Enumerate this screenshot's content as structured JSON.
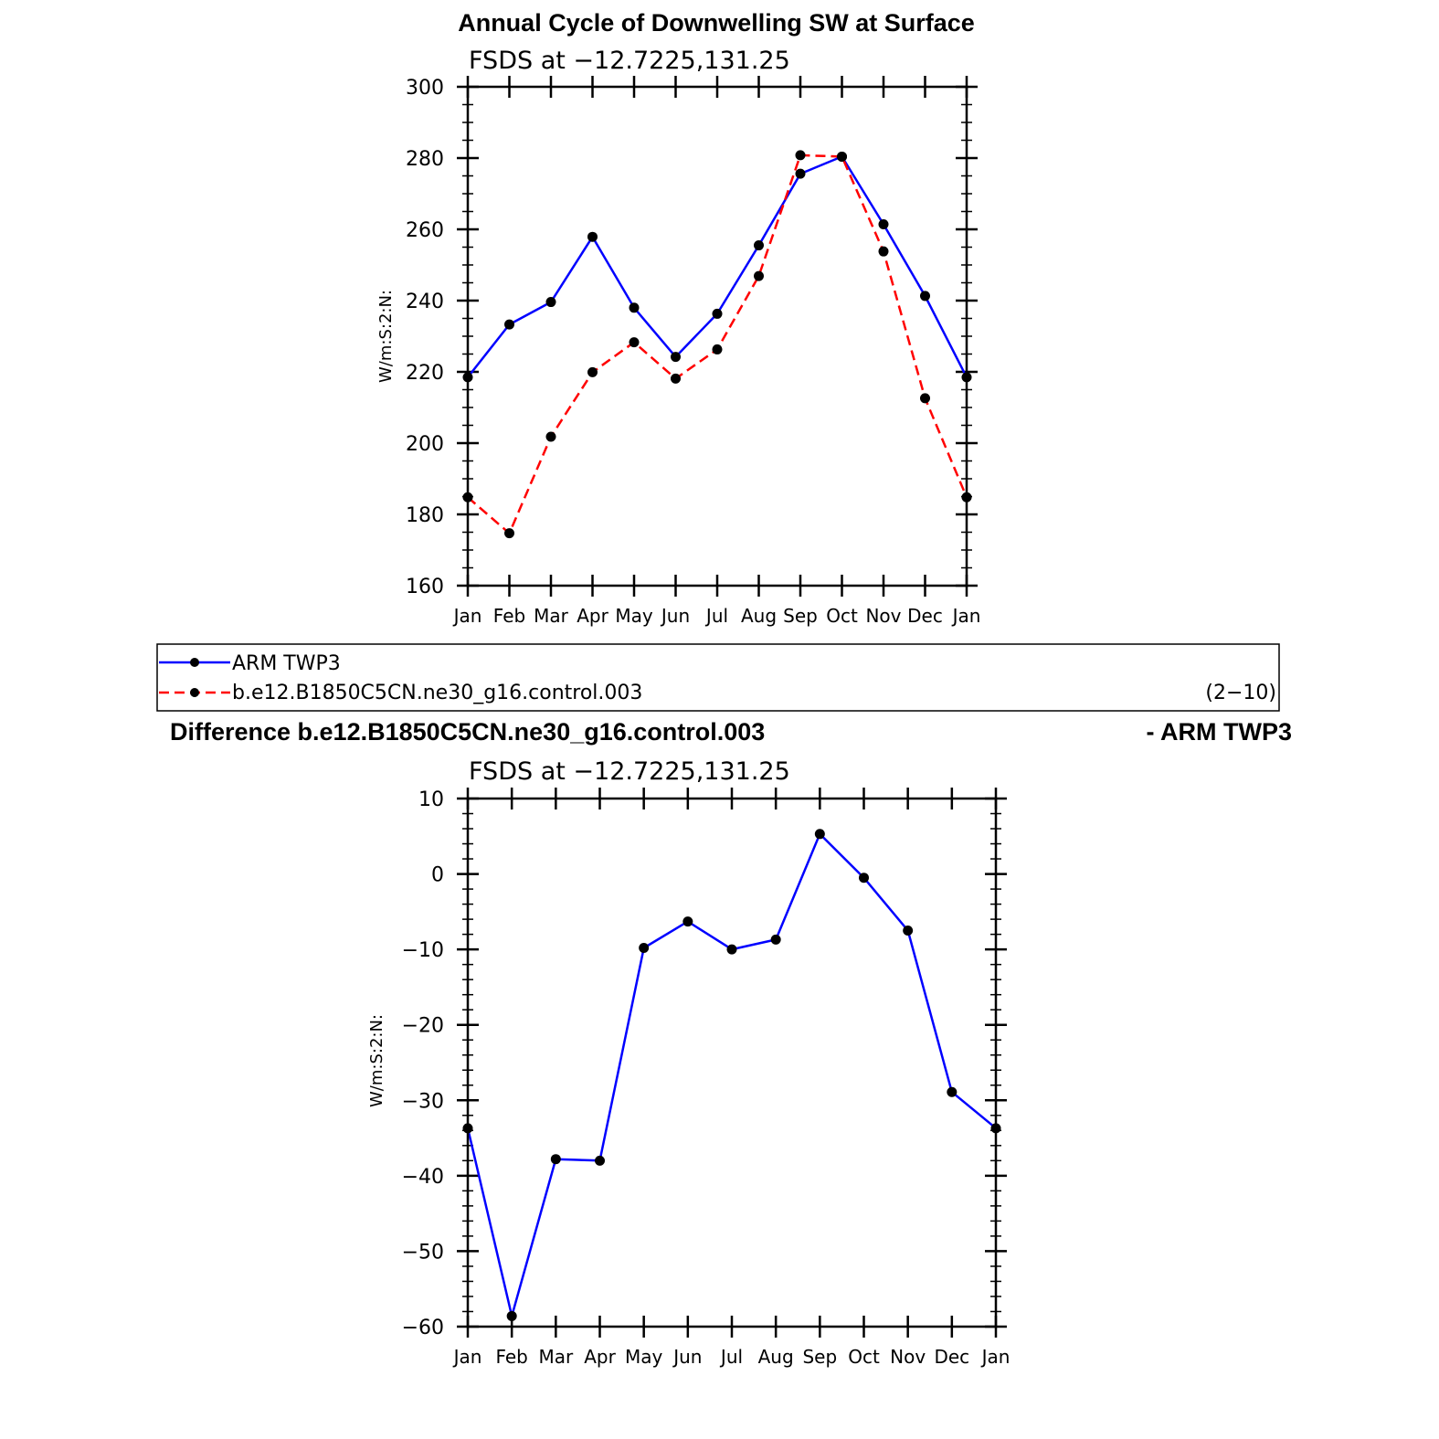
{
  "chart_data": [
    {
      "type": "line",
      "title": "Annual Cycle of Downwelling SW at Surface",
      "subtitle": "FSDS at −12.7225,131.25",
      "ylabel": "W/m:S:2:N:",
      "xlabel": "",
      "ylim": [
        160,
        300
      ],
      "yticks": [
        "160",
        "180",
        "200",
        "220",
        "240",
        "260",
        "280",
        "300"
      ],
      "categories": [
        "Jan",
        "Feb",
        "Mar",
        "Apr",
        "May",
        "Jun",
        "Jul",
        "Aug",
        "Sep",
        "Oct",
        "Nov",
        "Dec",
        "Jan"
      ],
      "series": [
        {
          "name": "ARM TWP3",
          "color": "#0000ff",
          "dash": "solid",
          "values": [
            218.5,
            233.3,
            239.6,
            257.9,
            238.0,
            224.2,
            236.3,
            255.5,
            275.6,
            280.4,
            261.4,
            241.3,
            218.5
          ]
        },
        {
          "name": "b.e12.B1850C5CN.ne30_g16.control.003",
          "color": "#ff0000",
          "dash": "dashed",
          "values": [
            184.8,
            174.7,
            201.8,
            219.9,
            228.3,
            218.1,
            226.3,
            246.9,
            280.8,
            280.4,
            253.8,
            212.6,
            184.8
          ]
        }
      ],
      "legend": {
        "placement": "below",
        "note": "(2−10)"
      }
    },
    {
      "type": "line",
      "title": "Difference b.e12.B1850C5CN.ne30_g16.control.003",
      "title_right": "- ARM TWP3",
      "subtitle": "FSDS at −12.7225,131.25",
      "ylabel": "W/m:S:2:N:",
      "xlabel": "",
      "ylim": [
        -60,
        10
      ],
      "yticks": [
        "−60",
        "−50",
        "−40",
        "−30",
        "−20",
        "−10",
        "0",
        "10"
      ],
      "categories": [
        "Jan",
        "Feb",
        "Mar",
        "Apr",
        "May",
        "Jun",
        "Jul",
        "Aug",
        "Sep",
        "Oct",
        "Nov",
        "Dec",
        "Jan"
      ],
      "series": [
        {
          "color": "#0000ff",
          "dash": "solid",
          "values": [
            -33.7,
            -58.6,
            -37.8,
            -38.0,
            -9.8,
            -6.3,
            -10.0,
            -8.7,
            5.3,
            -0.5,
            -7.5,
            -28.9,
            -33.7
          ]
        }
      ]
    }
  ]
}
